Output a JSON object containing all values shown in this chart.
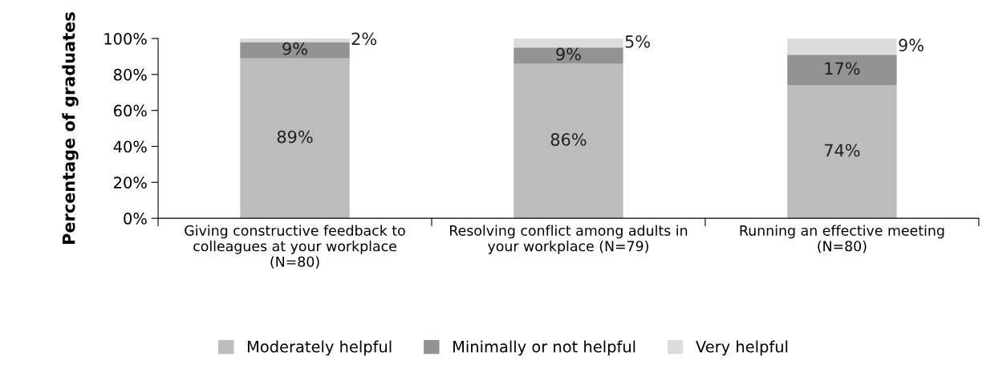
{
  "chart_data": {
    "type": "bar",
    "stacked": true,
    "ylabel": "Percentage of graduates",
    "categories": [
      "Giving constructive feedback to\ncolleagues at your workplace\n(N=80)",
      "Resolving conflict among adults in\nyour workplace (N=79)",
      "Running an effective meeting\n(N=80)"
    ],
    "series": [
      {
        "name": "Moderately helpful",
        "color": "#bcbcbf",
        "values": [
          89,
          86,
          74
        ],
        "value_labels": [
          "89%",
          "86%",
          "74%"
        ]
      },
      {
        "name": "Minimally or not helpful",
        "color": "#939396",
        "values": [
          9,
          9,
          17
        ],
        "value_labels": [
          "9%",
          "9%",
          "17%"
        ]
      },
      {
        "name": "Very helpful",
        "color": "#dcdcde",
        "values": [
          2,
          5,
          9
        ],
        "value_labels": [
          "2%",
          "5%",
          "9%"
        ]
      }
    ],
    "ylim": [
      0,
      100
    ],
    "yticks": [
      {
        "value": 0,
        "label": "0%"
      },
      {
        "value": 20,
        "label": "20%"
      },
      {
        "value": 40,
        "label": "40%"
      },
      {
        "value": 60,
        "label": "60%"
      },
      {
        "value": 80,
        "label": "80%"
      },
      {
        "value": 100,
        "label": "100%"
      }
    ],
    "grid": false,
    "legend": "bottom"
  }
}
